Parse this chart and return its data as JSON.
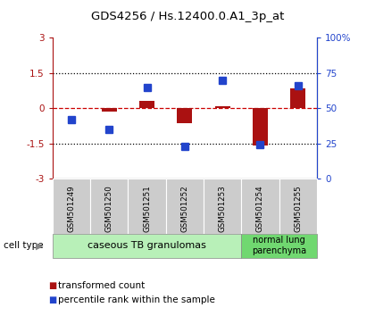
{
  "title": "GDS4256 / Hs.12400.0.A1_3p_at",
  "samples": [
    "GSM501249",
    "GSM501250",
    "GSM501251",
    "GSM501252",
    "GSM501253",
    "GSM501254",
    "GSM501255"
  ],
  "transformed_count": [
    0.02,
    -0.15,
    0.3,
    -0.65,
    0.1,
    -1.6,
    0.85
  ],
  "percentile_rank": [
    42,
    35,
    65,
    23,
    70,
    24,
    66
  ],
  "ylim_left": [
    -3,
    3
  ],
  "ylim_right": [
    0,
    100
  ],
  "yticks_left": [
    -3,
    -1.5,
    0,
    1.5,
    3
  ],
  "yticks_right": [
    0,
    25,
    50,
    75,
    100
  ],
  "ytick_labels_left": [
    "-3",
    "-1.5",
    "0",
    "1.5",
    "3"
  ],
  "ytick_labels_right": [
    "0",
    "25",
    "50",
    "75",
    "100%"
  ],
  "cell_type_groups": [
    {
      "label": "caseous TB granulomas",
      "n_samples": 5,
      "color": "#b8f0b8"
    },
    {
      "label": "normal lung\nparenchyma",
      "n_samples": 2,
      "color": "#70d870"
    }
  ],
  "red_color": "#aa1111",
  "blue_color": "#2244cc",
  "bar_width": 0.4,
  "background_color": "#ffffff",
  "sample_box_color": "#cccccc",
  "zero_line_color": "#cc0000",
  "label_transformed": "transformed count",
  "label_percentile": "percentile rank within the sample",
  "cell_type_label": "cell type"
}
